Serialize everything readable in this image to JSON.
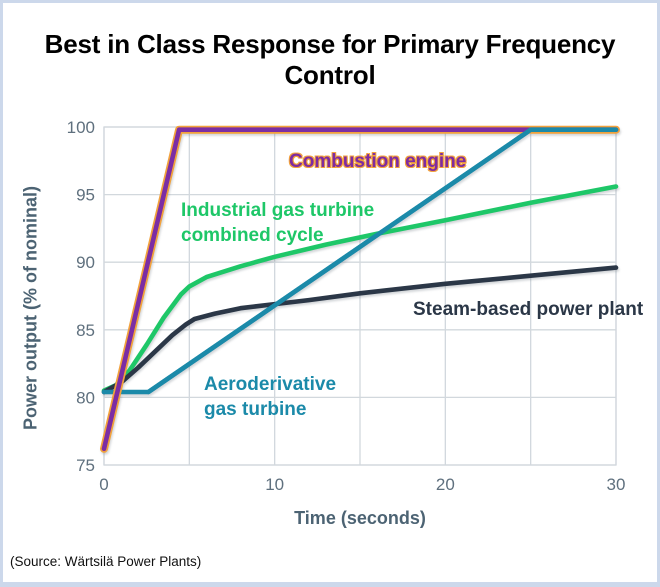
{
  "title": "Best in Class Response for Primary Frequency\nControl",
  "source": "(Source: Wärtsilä Power Plants)",
  "chart_data": {
    "type": "line",
    "title": "Best in Class Response for Primary Frequency Control",
    "xlabel": "Time (seconds)",
    "ylabel": "Power output (% of nominal)",
    "xlim": [
      0,
      30
    ],
    "ylim": [
      75,
      100
    ],
    "x_ticks": [
      0,
      10,
      20,
      30
    ],
    "y_ticks": [
      75,
      80,
      85,
      90,
      95,
      100
    ],
    "x_gridlines": [
      0,
      5,
      10,
      15,
      20,
      25,
      30
    ],
    "y_gridlines": [
      75,
      80,
      85,
      90,
      95,
      100
    ],
    "grid": true,
    "legend_position": "inline-labels",
    "grid_color": "#d2d8dd",
    "series": [
      {
        "name": "Combustion engine",
        "label": "Combustion engine",
        "color": "#7b2da4",
        "edge_color": "#f2a23c",
        "z": 4,
        "points": [
          [
            0,
            76.2
          ],
          [
            4.4,
            99.8
          ],
          [
            30,
            99.8
          ]
        ]
      },
      {
        "name": "Industrial gas turbine combined cycle",
        "label": "Industrial gas turbine\ncombined cycle",
        "color": "#1ec768",
        "z": 1,
        "points": [
          [
            0,
            80.5
          ],
          [
            0.7,
            80.9
          ],
          [
            1.5,
            82.0
          ],
          [
            2.5,
            83.9
          ],
          [
            3.5,
            85.9
          ],
          [
            4.5,
            87.6
          ],
          [
            5,
            88.2
          ],
          [
            6,
            88.9
          ],
          [
            8,
            89.7
          ],
          [
            10,
            90.4
          ],
          [
            13,
            91.3
          ],
          [
            16,
            92.1
          ],
          [
            20,
            93.1
          ],
          [
            25,
            94.4
          ],
          [
            30,
            95.6
          ]
        ]
      },
      {
        "name": "Aeroderivative gas turbine",
        "label": "Aeroderivative\ngas turbine",
        "color": "#1b8aa9",
        "z": 3,
        "redraw_on_top_from": 2.6,
        "points": [
          [
            0,
            80.4
          ],
          [
            2.6,
            80.4
          ],
          [
            25,
            99.8
          ],
          [
            30,
            99.8
          ]
        ]
      },
      {
        "name": "Steam-based power plant",
        "label": "Steam-based power plant",
        "color": "#2b3747",
        "z": 2,
        "points": [
          [
            0,
            80.4
          ],
          [
            1,
            81.1
          ],
          [
            2,
            82.2
          ],
          [
            3,
            83.4
          ],
          [
            4,
            84.6
          ],
          [
            4.8,
            85.4
          ],
          [
            5.3,
            85.8
          ],
          [
            6.5,
            86.2
          ],
          [
            8,
            86.6
          ],
          [
            10,
            86.9
          ],
          [
            12,
            87.2
          ],
          [
            15,
            87.7
          ],
          [
            20,
            88.4
          ],
          [
            25,
            89.0
          ],
          [
            30,
            89.6
          ]
        ]
      }
    ]
  }
}
